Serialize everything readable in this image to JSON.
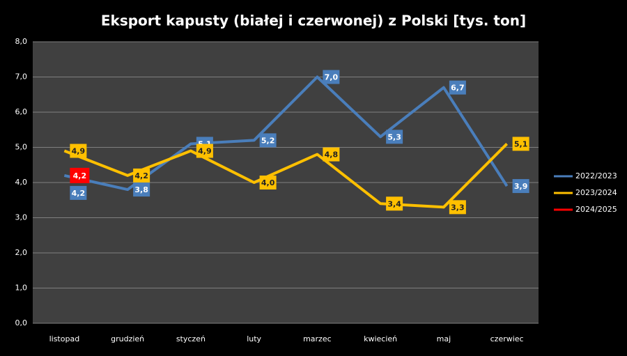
{
  "chart_data": {
    "type": "line",
    "title": "Eksport kapusty (białej i czerwonej) z Polski [tys. ton]",
    "categories": [
      "listopad",
      "grudzień",
      "styczeń",
      "luty",
      "marzec",
      "kwiecień",
      "maj",
      "czerwiec"
    ],
    "series": [
      {
        "name": "2022/2023",
        "color": "#4a7ebb",
        "values": [
          4.2,
          3.8,
          5.1,
          5.2,
          7.0,
          5.3,
          6.7,
          3.9
        ],
        "value_labels": [
          "4,2",
          "3,8",
          "5,1",
          "5,2",
          "7,0",
          "5,3",
          "6,7",
          "3,9"
        ]
      },
      {
        "name": "2023/2024",
        "color": "#ffc000",
        "values": [
          4.9,
          4.2,
          4.9,
          4.0,
          4.8,
          3.4,
          3.3,
          5.1
        ],
        "value_labels": [
          "4,9",
          "4,2",
          "4,9",
          "4,0",
          "4,8",
          "3,4",
          "3,3",
          "5,1"
        ]
      },
      {
        "name": "2024/2025",
        "color": "#ff0000",
        "values": [
          4.2,
          null,
          null,
          null,
          null,
          null,
          null,
          null
        ],
        "value_labels": [
          "4,2",
          null,
          null,
          null,
          null,
          null,
          null,
          null
        ]
      }
    ],
    "ylim": [
      0,
      8
    ],
    "yticks": [
      {
        "value": 0,
        "label": "0,0"
      },
      {
        "value": 1,
        "label": "1,0"
      },
      {
        "value": 2,
        "label": "2,0"
      },
      {
        "value": 3,
        "label": "3,0"
      },
      {
        "value": 4,
        "label": "4,0"
      },
      {
        "value": 5,
        "label": "5,0"
      },
      {
        "value": 6,
        "label": "6,0"
      },
      {
        "value": 7,
        "label": "7,0"
      },
      {
        "value": 8,
        "label": "8,0"
      }
    ],
    "grid": true,
    "legend": "right"
  }
}
